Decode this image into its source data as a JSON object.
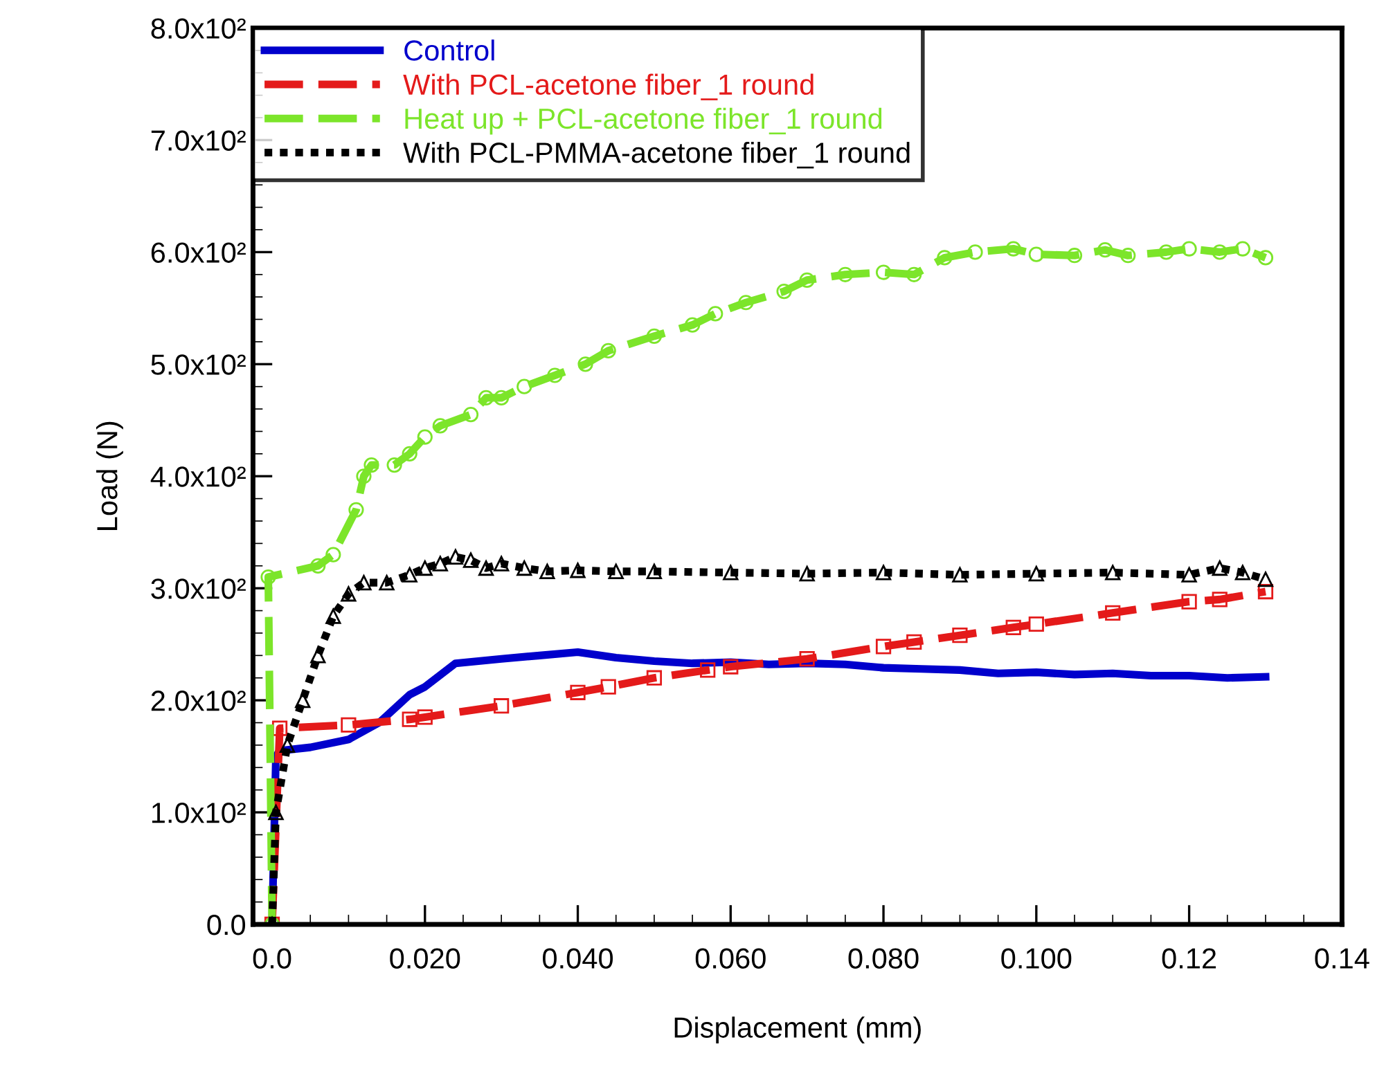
{
  "chart_data": {
    "type": "line",
    "xlabel": "Displacement (mm)",
    "ylabel": "Load (N)",
    "xlim": [
      -0.0025,
      0.14
    ],
    "ylim": [
      0,
      800
    ],
    "xticks": [
      {
        "value": 0,
        "label": "0.0"
      },
      {
        "value": 0.02,
        "label": "0.020"
      },
      {
        "value": 0.04,
        "label": "0.040"
      },
      {
        "value": 0.06,
        "label": "0.060"
      },
      {
        "value": 0.08,
        "label": "0.080"
      },
      {
        "value": 0.1,
        "label": "0.100"
      },
      {
        "value": 0.12,
        "label": "0.12"
      },
      {
        "value": 0.14,
        "label": "0.14"
      }
    ],
    "yticks": [
      {
        "value": 0,
        "label": "0.0"
      },
      {
        "value": 100,
        "label": "1.0x10²"
      },
      {
        "value": 200,
        "label": "2.0x10²"
      },
      {
        "value": 300,
        "label": "3.0x10²"
      },
      {
        "value": 400,
        "label": "4.0x10²"
      },
      {
        "value": 500,
        "label": "5.0x10²"
      },
      {
        "value": 600,
        "label": "6.0x10²"
      },
      {
        "value": 700,
        "label": "7.0x10²"
      },
      {
        "value": 800,
        "label": "8.0x10²"
      }
    ],
    "grid": false,
    "legend": "top left",
    "series": [
      {
        "name": "Control",
        "color": "#0000cc",
        "line_style": "solid",
        "marker": "none",
        "x": [
          0,
          0.0005,
          0.001,
          0.005,
          0.01,
          0.014,
          0.018,
          0.02,
          0.024,
          0.03,
          0.035,
          0.04,
          0.045,
          0.05,
          0.055,
          0.06,
          0.065,
          0.07,
          0.075,
          0.08,
          0.085,
          0.09,
          0.095,
          0.1,
          0.105,
          0.11,
          0.115,
          0.12,
          0.125,
          0.13
        ],
        "values": [
          0,
          150,
          155,
          158,
          165,
          180,
          205,
          212,
          233,
          237,
          240,
          243,
          238,
          235,
          233,
          234,
          232,
          233,
          232,
          229,
          228,
          227,
          224,
          225,
          223,
          224,
          222,
          222,
          220,
          221
        ]
      },
      {
        "name": "With PCL-acetone fiber_1 round",
        "color": "#e41a1a",
        "line_style": "dashed",
        "marker": "square",
        "x": [
          0,
          0.001,
          0.01,
          0.018,
          0.02,
          0.03,
          0.04,
          0.044,
          0.05,
          0.057,
          0.06,
          0.07,
          0.08,
          0.084,
          0.09,
          0.097,
          0.1,
          0.11,
          0.12,
          0.124,
          0.13
        ],
        "values": [
          0,
          175,
          178,
          183,
          185,
          195,
          207,
          212,
          220,
          227,
          230,
          237,
          248,
          252,
          258,
          265,
          268,
          278,
          288,
          290,
          297
        ]
      },
      {
        "name": "Heat up + PCL-acetone fiber_1 round",
        "color": "#7ce52a",
        "line_style": "dashed",
        "marker": "circle",
        "x": [
          0,
          -0.0005,
          0.006,
          0.008,
          0.011,
          0.012,
          0.013,
          0.016,
          0.018,
          0.02,
          0.022,
          0.026,
          0.028,
          0.03,
          0.033,
          0.037,
          0.041,
          0.044,
          0.05,
          0.055,
          0.058,
          0.062,
          0.067,
          0.07,
          0.075,
          0.08,
          0.084,
          0.088,
          0.092,
          0.097,
          0.1,
          0.105,
          0.109,
          0.112,
          0.117,
          0.12,
          0.124,
          0.127,
          0.13
        ],
        "values": [
          0,
          310,
          320,
          330,
          370,
          400,
          410,
          410,
          420,
          435,
          445,
          455,
          470,
          470,
          480,
          490,
          500,
          512,
          525,
          535,
          545,
          555,
          565,
          575,
          580,
          582,
          580,
          595,
          600,
          603,
          598,
          597,
          602,
          597,
          600,
          603,
          600,
          603,
          595
        ]
      },
      {
        "name": "With PCL-PMMA-acetone fiber_1 round",
        "color": "#000000",
        "line_style": "dotted",
        "marker": "triangle",
        "x": [
          0,
          0.0005,
          0.002,
          0.004,
          0.006,
          0.008,
          0.01,
          0.012,
          0.015,
          0.018,
          0.02,
          0.022,
          0.024,
          0.026,
          0.028,
          0.03,
          0.033,
          0.036,
          0.04,
          0.045,
          0.05,
          0.06,
          0.07,
          0.08,
          0.09,
          0.1,
          0.11,
          0.12,
          0.124,
          0.127,
          0.13
        ],
        "values": [
          0,
          100,
          160,
          200,
          240,
          275,
          295,
          305,
          305,
          312,
          318,
          322,
          328,
          325,
          318,
          322,
          318,
          315,
          316,
          315,
          315,
          314,
          313,
          314,
          312,
          313,
          314,
          312,
          318,
          314,
          308
        ]
      }
    ]
  }
}
